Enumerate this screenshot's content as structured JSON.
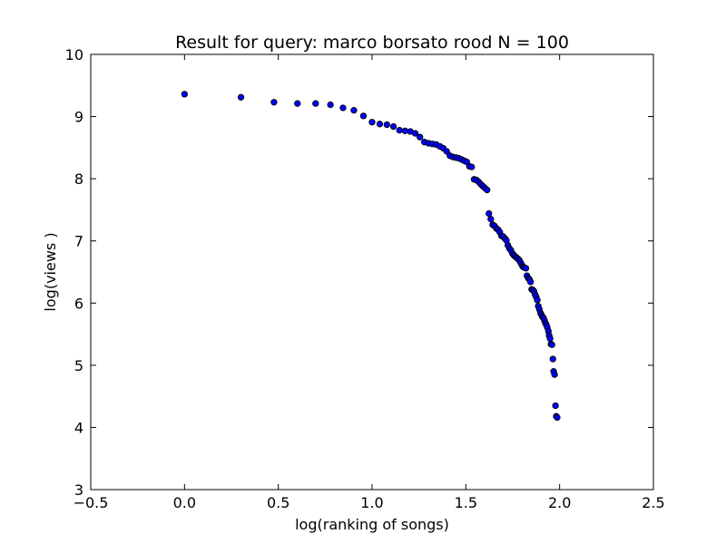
{
  "chart_data": {
    "type": "scatter",
    "title": "Result for query: marco borsato rood N = 100",
    "xlabel": "log(ranking of songs)",
    "ylabel": "log(views )",
    "xlim": [
      -0.5,
      2.5
    ],
    "ylim": [
      3,
      10
    ],
    "xticks": [
      "−0.5",
      "0.0",
      "0.5",
      "1.0",
      "1.5",
      "2.0",
      "2.5"
    ],
    "yticks": [
      "3",
      "4",
      "5",
      "6",
      "7",
      "8",
      "9",
      "10"
    ],
    "grid": false,
    "marker_color": "#0000ff",
    "series": [
      {
        "points": [
          [
            0.0,
            9.36
          ],
          [
            0.301,
            9.31
          ],
          [
            0.477,
            9.23
          ],
          [
            0.602,
            9.21
          ],
          [
            0.699,
            9.21
          ],
          [
            0.778,
            9.19
          ],
          [
            0.845,
            9.14
          ],
          [
            0.903,
            9.1
          ],
          [
            0.954,
            9.01
          ],
          [
            1.0,
            8.91
          ],
          [
            1.041,
            8.88
          ],
          [
            1.079,
            8.87
          ],
          [
            1.114,
            8.84
          ],
          [
            1.146,
            8.78
          ],
          [
            1.176,
            8.77
          ],
          [
            1.204,
            8.76
          ],
          [
            1.23,
            8.73
          ],
          [
            1.255,
            8.67
          ],
          [
            1.279,
            8.59
          ],
          [
            1.301,
            8.57
          ],
          [
            1.322,
            8.56
          ],
          [
            1.342,
            8.55
          ],
          [
            1.362,
            8.52
          ],
          [
            1.38,
            8.49
          ],
          [
            1.398,
            8.44
          ],
          [
            1.415,
            8.37
          ],
          [
            1.431,
            8.35
          ],
          [
            1.447,
            8.34
          ],
          [
            1.462,
            8.33
          ],
          [
            1.477,
            8.31
          ],
          [
            1.491,
            8.29
          ],
          [
            1.505,
            8.27
          ],
          [
            1.519,
            8.2
          ],
          [
            1.531,
            8.19
          ],
          [
            1.544,
            7.99
          ],
          [
            1.556,
            7.98
          ],
          [
            1.568,
            7.95
          ],
          [
            1.58,
            7.91
          ],
          [
            1.591,
            7.88
          ],
          [
            1.602,
            7.85
          ],
          [
            1.613,
            7.82
          ],
          [
            1.623,
            7.44
          ],
          [
            1.633,
            7.35
          ],
          [
            1.643,
            7.26
          ],
          [
            1.653,
            7.24
          ],
          [
            1.663,
            7.2
          ],
          [
            1.672,
            7.18
          ],
          [
            1.681,
            7.14
          ],
          [
            1.69,
            7.08
          ],
          [
            1.699,
            7.07
          ],
          [
            1.708,
            7.04
          ],
          [
            1.716,
            7.01
          ],
          [
            1.724,
            6.93
          ],
          [
            1.732,
            6.88
          ],
          [
            1.74,
            6.85
          ],
          [
            1.748,
            6.8
          ],
          [
            1.756,
            6.77
          ],
          [
            1.763,
            6.75
          ],
          [
            1.771,
            6.73
          ],
          [
            1.778,
            6.71
          ],
          [
            1.785,
            6.69
          ],
          [
            1.792,
            6.65
          ],
          [
            1.799,
            6.61
          ],
          [
            1.806,
            6.58
          ],
          [
            1.813,
            6.57
          ],
          [
            1.82,
            6.56
          ],
          [
            1.826,
            6.44
          ],
          [
            1.833,
            6.4
          ],
          [
            1.839,
            6.38
          ],
          [
            1.845,
            6.34
          ],
          [
            1.851,
            6.22
          ],
          [
            1.857,
            6.21
          ],
          [
            1.863,
            6.19
          ],
          [
            1.869,
            6.14
          ],
          [
            1.875,
            6.1
          ],
          [
            1.881,
            6.05
          ],
          [
            1.886,
            5.95
          ],
          [
            1.892,
            5.9
          ],
          [
            1.898,
            5.84
          ],
          [
            1.903,
            5.81
          ],
          [
            1.908,
            5.78
          ],
          [
            1.914,
            5.76
          ],
          [
            1.919,
            5.72
          ],
          [
            1.924,
            5.68
          ],
          [
            1.929,
            5.65
          ],
          [
            1.934,
            5.61
          ],
          [
            1.94,
            5.55
          ],
          [
            1.944,
            5.48
          ],
          [
            1.949,
            5.43
          ],
          [
            1.954,
            5.34
          ],
          [
            1.959,
            5.33
          ],
          [
            1.964,
            5.1
          ],
          [
            1.968,
            4.9
          ],
          [
            1.973,
            4.85
          ],
          [
            1.978,
            4.35
          ],
          [
            1.982,
            4.18
          ],
          [
            1.987,
            4.16
          ]
        ]
      }
    ]
  }
}
